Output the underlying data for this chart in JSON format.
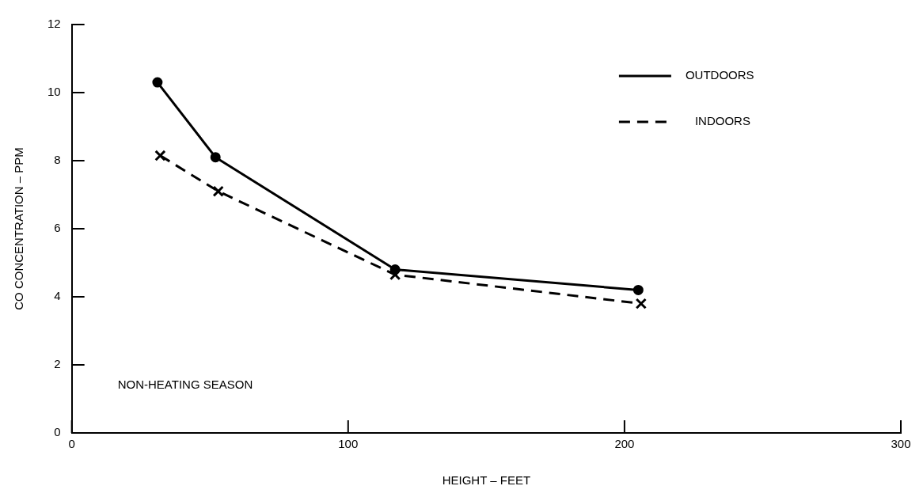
{
  "chart_data": {
    "type": "line",
    "xlabel": "HEIGHT – FEET",
    "ylabel": "CO CONCENTRATION – PPM",
    "xlim": [
      0,
      300
    ],
    "xticks": [
      0,
      100,
      200,
      300
    ],
    "ylim": [
      0,
      12
    ],
    "yticks": [
      0,
      2,
      4,
      6,
      8,
      10,
      12
    ],
    "grid": false,
    "legend": "top right",
    "annotations": [
      "NON-HEATING SEASON"
    ],
    "series": [
      {
        "name": "OUTDOORS",
        "color": "#000000",
        "x": [
          31,
          52,
          117,
          205
        ],
        "values": [
          10.3,
          8.1,
          4.8,
          4.2
        ],
        "marker": "circle",
        "line_style": "solid"
      },
      {
        "name": "INDOORS",
        "color": "#000000",
        "x": [
          32,
          53,
          117,
          206
        ],
        "values": [
          8.15,
          7.1,
          4.65,
          3.8
        ],
        "marker": "cross",
        "line_style": "dashed"
      }
    ]
  }
}
